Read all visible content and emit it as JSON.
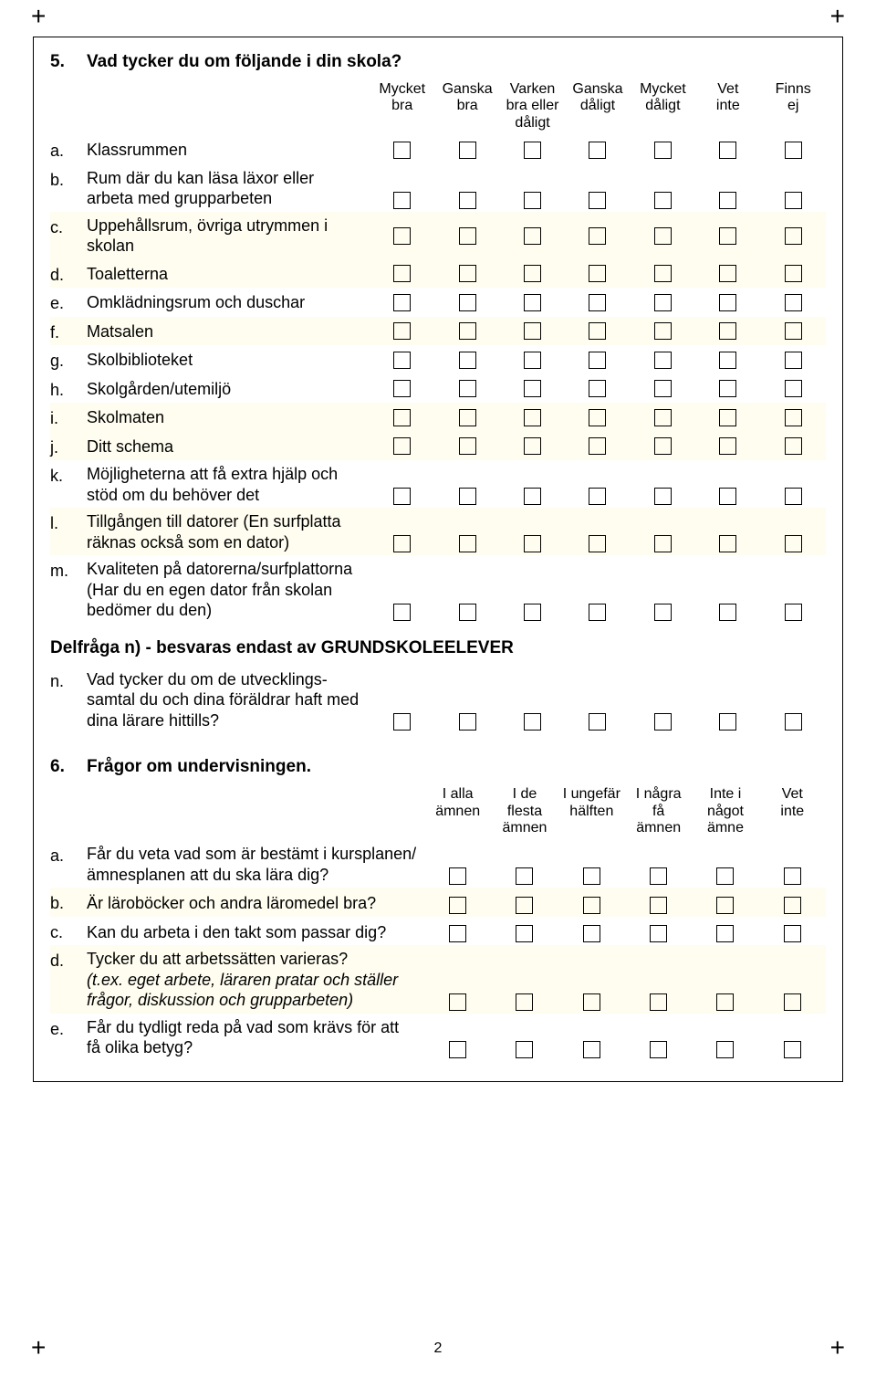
{
  "page_number": "2",
  "crop_glyph": "+",
  "q5": {
    "number": "5.",
    "title": "Vad tycker du om följande i din skola?",
    "headers": [
      "Mycket\nbra",
      "Ganska\nbra",
      "Varken\nbra eller\ndåligt",
      "Ganska\ndåligt",
      "Mycket\ndåligt",
      "Vet\ninte",
      "Finns\nej"
    ],
    "rows": [
      {
        "l": "a.",
        "t": "Klassrummen",
        "tint": false
      },
      {
        "l": "b.",
        "t": "Rum där du kan läsa läxor eller arbeta med grupparbeten",
        "tint": false
      },
      {
        "l": "c.",
        "t": "Uppehållsrum, övriga utrymmen i skolan",
        "tint": true
      },
      {
        "l": "d.",
        "t": "Toaletterna",
        "tint": true
      },
      {
        "l": "e.",
        "t": "Omklädningsrum och duschar",
        "tint": false
      },
      {
        "l": "f.",
        "t": "Matsalen",
        "tint": true
      },
      {
        "l": "g.",
        "t": "Skolbiblioteket",
        "tint": false
      },
      {
        "l": "h.",
        "t": "Skolgården/utemiljö",
        "tint": false
      },
      {
        "l": "i.",
        "t": "Skolmaten",
        "tint": true
      },
      {
        "l": "j.",
        "t": "Ditt schema",
        "tint": true
      },
      {
        "l": "k.",
        "t": "Möjligheterna att få extra hjälp och stöd om du behöver det",
        "tint": false
      },
      {
        "l": "l.",
        "t": "Tillgången till datorer (En surf­platta räknas också som en dator)",
        "tint": true
      },
      {
        "l": "m.",
        "t": "Kvaliteten på datorerna/surf­plattorna (Har du en egen dator från skolan bedömer du den)",
        "tint": false
      }
    ],
    "subnote": "Delfråga n) - besvaras endast av GRUNDSKOLEELEVER",
    "row_n": {
      "l": "n.",
      "t": "Vad tycker du om de utvecklings­samtal du och dina föräldrar haft med dina lärare hittills?"
    }
  },
  "q6": {
    "number": "6.",
    "title": "Frågor om undervisningen.",
    "headers": [
      "I alla\nämnen",
      "I de\nflesta\nämnen",
      "I ungefär\nhälften",
      "I några\nfå\nämnen",
      "Inte i\nnågot\nämne",
      "Vet\ninte"
    ],
    "rows": [
      {
        "l": "a.",
        "t": "Får du veta vad som är bestämt i kursplanen/ämnesplanen att du ska lära dig?",
        "tint": false
      },
      {
        "l": "b.",
        "t": "Är läroböcker och andra läromedel bra?",
        "tint": true
      },
      {
        "l": "c.",
        "t": "Kan du arbeta i den takt som passar dig?",
        "tint": false
      },
      {
        "l": "d.",
        "t": "Tycker du att arbetssätten varieras?",
        "italic_extra": "(t.ex. eget arbete, läraren pratar och ställer frågor, diskussion och grupparbeten)",
        "tint": true
      },
      {
        "l": "e.",
        "t": "Får du tydligt reda på vad som krävs för att få olika betyg?",
        "tint": false
      }
    ]
  },
  "colors": {
    "page_bg": "#ffffff",
    "tint_bg": "#fffdf0",
    "border": "#000000",
    "text": "#000000"
  }
}
